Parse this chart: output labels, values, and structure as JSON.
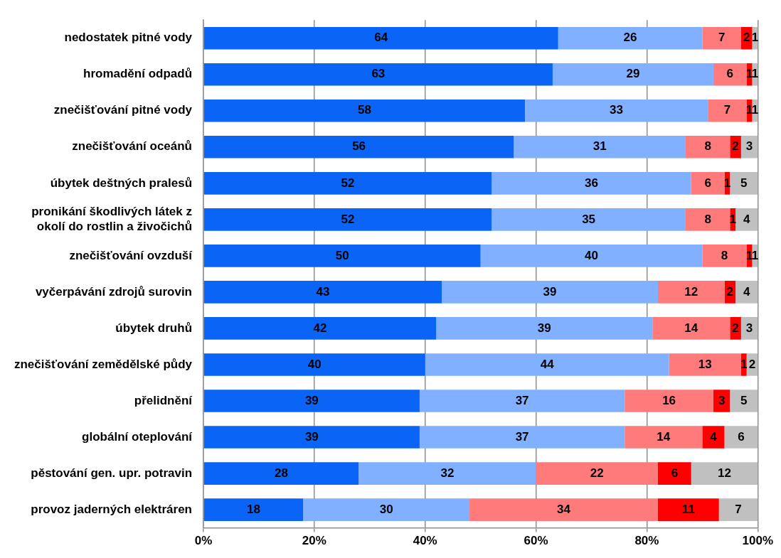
{
  "chart_data": {
    "type": "bar",
    "orientation": "horizontal",
    "stacked": true,
    "data_labels": true,
    "grid": "x",
    "legend": false,
    "categories": [
      "nedostatek pitné vody",
      "hromadění odpadů",
      "znečišťování pitné vody",
      "znečišťování oceánů",
      "úbytek deštných pralesů",
      "pronikání škodlivých látek z okolí do rostlin a živočichů",
      "znečišťování ovzduší",
      "vyčerpávání zdrojů surovin",
      "úbytek druhů",
      "znečišťování zemědělské půdy",
      "přelidnění",
      "globální oteplování",
      "pěstování gen. upr. potravin",
      "provoz jaderných elektráren"
    ],
    "xlim": [
      0,
      100
    ],
    "xticks": [
      {
        "value": 0,
        "label": "0%"
      },
      {
        "value": 20,
        "label": "20%"
      },
      {
        "value": 40,
        "label": "40%"
      },
      {
        "value": 60,
        "label": "60%"
      },
      {
        "value": 80,
        "label": "80%"
      },
      {
        "value": 100,
        "label": "100%"
      }
    ],
    "series": [
      {
        "color": "#0a64f5",
        "values": [
          64,
          63,
          58,
          56,
          52,
          52,
          50,
          43,
          42,
          40,
          39,
          39,
          28,
          18
        ]
      },
      {
        "color": "#80b0ff",
        "values": [
          26,
          29,
          33,
          31,
          36,
          35,
          40,
          39,
          39,
          44,
          37,
          37,
          32,
          30
        ]
      },
      {
        "color": "#ff7b7b",
        "values": [
          7,
          6,
          7,
          8,
          6,
          8,
          8,
          12,
          14,
          13,
          16,
          14,
          22,
          34
        ]
      },
      {
        "color": "#ff0000",
        "values": [
          2,
          1,
          1,
          2,
          1,
          1,
          1,
          2,
          2,
          1,
          3,
          4,
          6,
          11
        ]
      },
      {
        "color": "#c0c0c0",
        "values": [
          1,
          1,
          1,
          3,
          5,
          4,
          1,
          4,
          3,
          2,
          5,
          6,
          12,
          7
        ]
      }
    ]
  }
}
